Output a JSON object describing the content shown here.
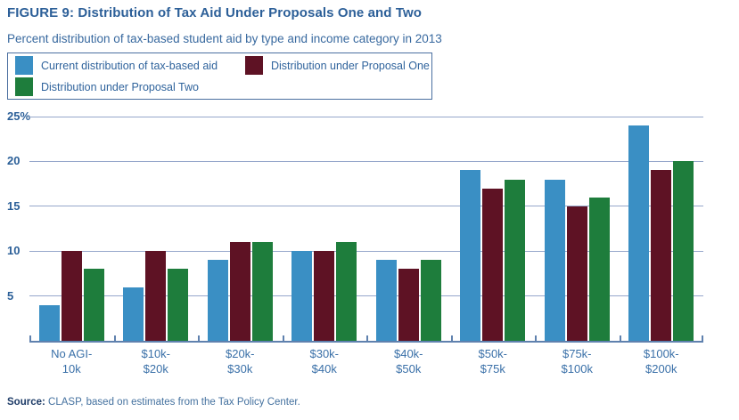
{
  "header": {
    "title": "FIGURE 9: Distribution of Tax Aid Under Proposals One and Two",
    "subtitle": "Percent distribution of tax-based student aid by type and income category in 2013"
  },
  "source": {
    "label": "Source:",
    "text": " CLASP, based on estimates from the Tax Policy Center."
  },
  "chart_data": {
    "type": "bar",
    "title": "FIGURE 9: Distribution of Tax Aid Under Proposals One and Two",
    "subtitle": "Percent distribution of tax-based student aid by type and income category in 2013",
    "categories": [
      "No AGI-\n10k",
      "$10k-\n$20k",
      "$20k-\n$30k",
      "$30k-\n$40k",
      "$40k-\n$50k",
      "$50k-\n$75k",
      "$75k-\n$100k",
      "$100k-\n$200k"
    ],
    "series": [
      {
        "name": "Current distribution of tax-based aid",
        "color": "#3a8fc4",
        "values": [
          4,
          6,
          9,
          10,
          9,
          19,
          18,
          24
        ]
      },
      {
        "name": "Distribution under Proposal One",
        "color": "#5e1224",
        "values": [
          10,
          10,
          11,
          10,
          8,
          17,
          15,
          19
        ]
      },
      {
        "name": "Distribution under Proposal Two",
        "color": "#1e7d3c",
        "values": [
          8,
          8,
          11,
          11,
          9,
          18,
          16,
          20
        ]
      }
    ],
    "xlabel": "",
    "ylabel": "",
    "ylim": [
      0,
      25
    ],
    "y_ticks": [
      {
        "value": 25,
        "label": "25%"
      },
      {
        "value": 20,
        "label": "20"
      },
      {
        "value": 15,
        "label": "15"
      },
      {
        "value": 10,
        "label": "10"
      },
      {
        "value": 5,
        "label": "5"
      }
    ],
    "grid": true,
    "legend_position": "top-left"
  },
  "colors": {
    "accent_blue": "#3a8fc4",
    "accent_maroon": "#5e1224",
    "accent_green": "#1e7d3c",
    "axis": "#5f81ae",
    "gridline": "#96a7cb",
    "text_blue": "#2c5f98"
  }
}
